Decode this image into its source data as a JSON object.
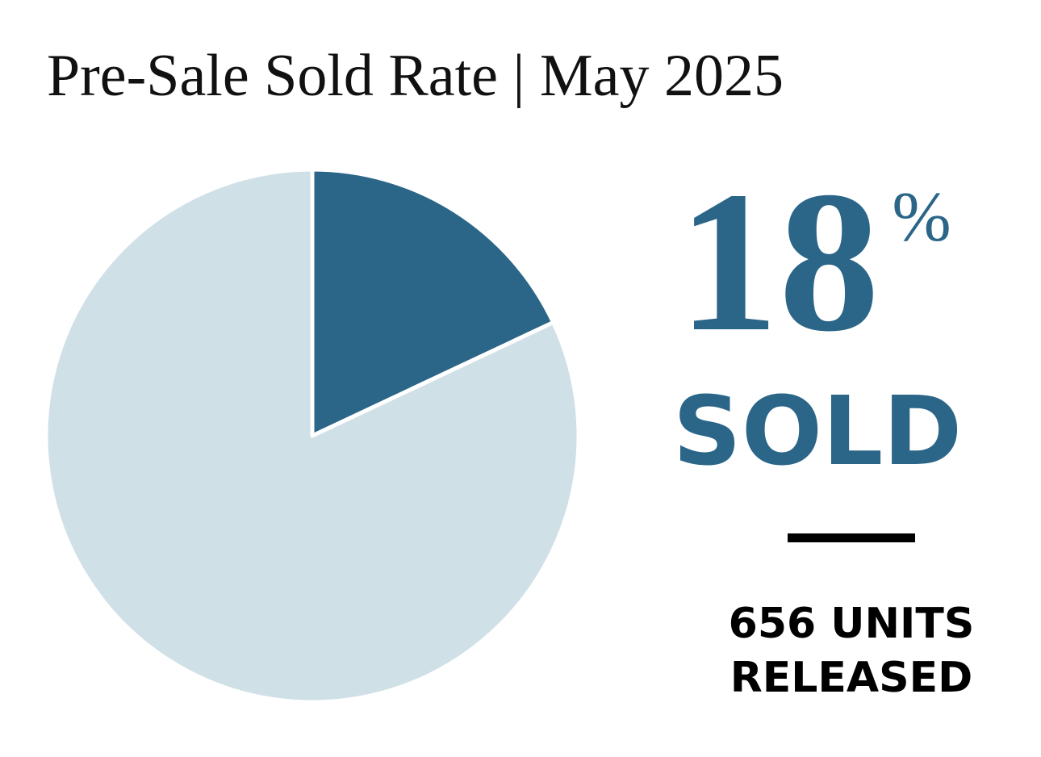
{
  "chart_data": {
    "type": "pie",
    "title": "Pre-Sale Sold Rate | May 2025",
    "values": [
      18,
      82
    ],
    "colors": [
      "#2b6688",
      "#cfe0e7"
    ],
    "unit": "%",
    "headline_label": "SOLD",
    "annotation": [
      "656 UNITS",
      "RELEASED"
    ]
  }
}
